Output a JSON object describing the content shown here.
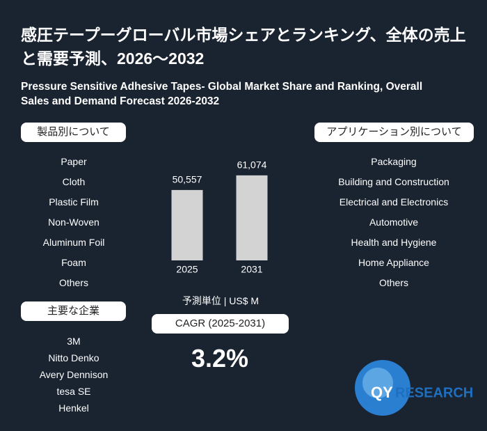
{
  "title_ja": "感圧テープーグローバル市場シェアとランキング、全体の売上と需要予測、2026～2032",
  "title_en": "Pressure Sensitive Adhesive Tapes- Global Market Share and Ranking, Overall Sales and Demand Forecast 2026-2032",
  "product_section": {
    "label": "製品別について",
    "items": [
      "Paper",
      "Cloth",
      "Plastic Film",
      "Non-Woven",
      "Aluminum Foil",
      "Foam",
      "Others"
    ]
  },
  "application_section": {
    "label": "アプリケーション別について",
    "items": [
      "Packaging",
      "Building and Construction",
      "Electrical and Electronics",
      "Automotive",
      "Health and Hygiene",
      "Home Appliance",
      "Others"
    ]
  },
  "companies_section": {
    "label": "主要な企業",
    "items": [
      "3M",
      "Nitto Denko",
      "Avery Dennison",
      "tesa SE",
      "Henkel"
    ]
  },
  "chart_data": {
    "type": "bar",
    "categories": [
      "2025",
      "2031"
    ],
    "values": [
      50557,
      61074
    ],
    "value_labels": [
      "50,557",
      "61,074"
    ],
    "color": "#d3d3d3",
    "unit_label": "予測単位 | US$ M"
  },
  "cagr": {
    "label": "CAGR (2025-2031)",
    "value": "3.2%"
  },
  "logo": [
    "QY",
    "RESEARCH"
  ]
}
